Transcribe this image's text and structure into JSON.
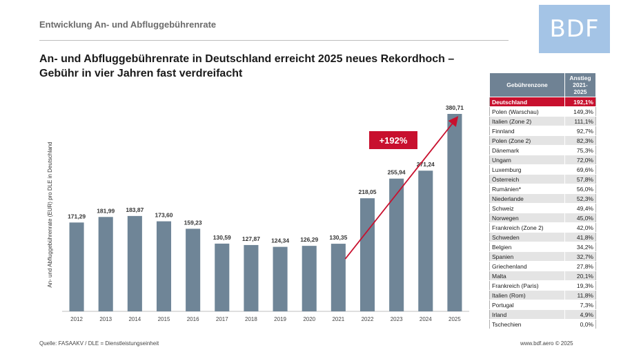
{
  "header": {
    "section_title": "Entwicklung An- und Abfluggebührenrate",
    "logo_text": "BDF",
    "headline_line1": "An- und Abfluggebührenrate in Deutschland erreicht 2025 neues Rekordhoch –",
    "headline_line2": "Gebühr in vier Jahren fast verdreifacht"
  },
  "chart_data": {
    "type": "bar",
    "categories": [
      "2012",
      "2013",
      "2014",
      "2015",
      "2016",
      "2017",
      "2018",
      "2019",
      "2020",
      "2021",
      "2022",
      "2023",
      "2024",
      "2025"
    ],
    "values": [
      171.29,
      181.99,
      183.87,
      173.6,
      159.23,
      130.59,
      127.87,
      124.34,
      126.29,
      130.35,
      218.05,
      255.94,
      271.24,
      380.71
    ],
    "value_labels": [
      "171,29",
      "181,99",
      "183,87",
      "173,60",
      "159,23",
      "130,59",
      "127,87",
      "124,34",
      "126,29",
      "130,35",
      "218,05",
      "255,94",
      "271,24",
      "380,71"
    ],
    "ylabel": "An- und Abfluggebührenrate (EUR) pro DLE in Deutschland",
    "ylim": [
      0,
      400
    ],
    "grid": false,
    "bar_color": "#6f8597",
    "annotation": {
      "text": "+192%",
      "from": "2021",
      "to": "2025",
      "color": "#c8102e"
    }
  },
  "table": {
    "headers": [
      "Gebührenzone",
      "Anstieg 2021-2025"
    ],
    "rows": [
      {
        "zone": "Deutschland",
        "value": "192,1%",
        "highlight": true
      },
      {
        "zone": "Polen (Warschau)",
        "value": "149,3%"
      },
      {
        "zone": "Italien (Zone 2)",
        "value": "111,1%"
      },
      {
        "zone": "Finnland",
        "value": "92,7%"
      },
      {
        "zone": "Polen (Zone 2)",
        "value": "82,3%"
      },
      {
        "zone": "Dänemark",
        "value": "75,3%"
      },
      {
        "zone": "Ungarn",
        "value": "72,0%"
      },
      {
        "zone": "Luxemburg",
        "value": "69,6%"
      },
      {
        "zone": "Österreich",
        "value": "57,8%"
      },
      {
        "zone": "Rumänien*",
        "value": "56,0%"
      },
      {
        "zone": "Niederlande",
        "value": "52,3%"
      },
      {
        "zone": "Schweiz",
        "value": "49,4%"
      },
      {
        "zone": "Norwegen",
        "value": "45,0%"
      },
      {
        "zone": "Frankreich (Zone 2)",
        "value": "42,0%"
      },
      {
        "zone": "Schweden",
        "value": "41,8%"
      },
      {
        "zone": "Belgien",
        "value": "34,2%"
      },
      {
        "zone": "Spanien",
        "value": "32,7%"
      },
      {
        "zone": "Griechenland",
        "value": "27,8%"
      },
      {
        "zone": "Malta",
        "value": "20,1%"
      },
      {
        "zone": "Frankreich (Paris)",
        "value": "19,3%"
      },
      {
        "zone": "Italien (Rom)",
        "value": "11,8%"
      },
      {
        "zone": "Portugal",
        "value": "7,3%"
      },
      {
        "zone": "Irland",
        "value": "4,9%"
      },
      {
        "zone": "Tschechien",
        "value": "0,0%"
      }
    ]
  },
  "footer": {
    "source": "Quelle: FASAAKV / DLE = Dienstleistungseinheit",
    "copyright": "www.bdf.aero © 2025"
  }
}
